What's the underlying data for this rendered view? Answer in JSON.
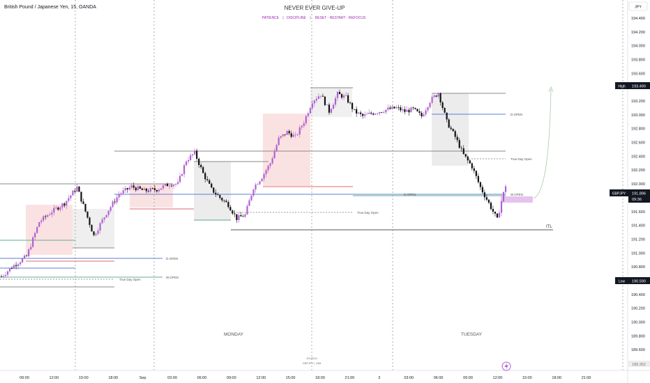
{
  "header": {
    "symbol_title": "British Pound / Japanese Yen, 15, OANDA",
    "headline": "NEVER EVER GIVE-UP",
    "motto_1": "PATIENCE",
    "motto_2": "DISCIPLINE",
    "motto_3": "RESET - RESTART - REFOCUS",
    "separator": "|"
  },
  "currency": "JPY",
  "colors": {
    "bull": "#b060d0",
    "bear": "#111111",
    "pink_zone": "#fbe2e2",
    "grey_zone": "#e9e9e9",
    "blue_line": "#5b7fd4",
    "green_line": "#5fae8f",
    "red_line": "#e06a6a",
    "badge_dark": "#131722"
  },
  "labels": {
    "d_open": "D.OPEN",
    "w_open": "W.OPEN",
    "true_day_open": "True Day Open",
    "itl": "ITL",
    "monday": "MONDAY",
    "tuesday": "TUESDAY",
    "date_stamp": "3/9/2024",
    "symbol_stamp": "GBPJPY | 15M"
  },
  "badges": {
    "high_label": "High",
    "high_value": "193.490",
    "low_label": "Low",
    "low_value": "190.590",
    "last_symbol": "GBPJPY",
    "last_value": "191.896",
    "countdown": "09:36",
    "bottom_value": "189.352"
  },
  "chart_data": {
    "type": "candlestick",
    "ylim": [
      189.3,
      194.55
    ],
    "y_ticks": [
      "194.400",
      "194.200",
      "194.000",
      "193.800",
      "193.600",
      "193.400",
      "193.200",
      "193.000",
      "192.800",
      "192.600",
      "192.400",
      "192.200",
      "192.000",
      "191.800",
      "191.600",
      "191.400",
      "191.200",
      "191.000",
      "190.800",
      "190.600",
      "190.400",
      "190.200",
      "190.000",
      "189.800",
      "189.600",
      "189.400"
    ],
    "x_ticks": [
      "09:00",
      "12:00",
      "15:00",
      "18:00",
      "Sep",
      "03:00",
      "06:00",
      "09:00",
      "12:00",
      "15:00",
      "18:00",
      "21:00",
      "3",
      "03:00",
      "06:00",
      "09:00",
      "12:00",
      "15:00",
      "18:00",
      "21:00"
    ],
    "waypoints": [
      [
        0,
        190.66
      ],
      [
        6,
        190.82
      ],
      [
        12,
        190.95
      ],
      [
        18,
        191.45
      ],
      [
        24,
        191.6
      ],
      [
        30,
        191.72
      ],
      [
        36,
        191.95
      ],
      [
        40,
        191.6
      ],
      [
        44,
        191.25
      ],
      [
        50,
        191.58
      ],
      [
        56,
        191.85
      ],
      [
        62,
        191.96
      ],
      [
        68,
        191.9
      ],
      [
        74,
        191.92
      ],
      [
        80,
        192.0
      ],
      [
        84,
        192.0
      ],
      [
        88,
        192.34
      ],
      [
        92,
        192.45
      ],
      [
        96,
        192.15
      ],
      [
        100,
        191.92
      ],
      [
        104,
        191.8
      ],
      [
        108,
        191.7
      ],
      [
        112,
        191.5
      ],
      [
        116,
        191.55
      ],
      [
        120,
        191.95
      ],
      [
        124,
        192.1
      ],
      [
        128,
        192.3
      ],
      [
        132,
        192.65
      ],
      [
        136,
        192.75
      ],
      [
        140,
        192.68
      ],
      [
        144,
        192.9
      ],
      [
        148,
        193.2
      ],
      [
        152,
        193.3
      ],
      [
        156,
        193.05
      ],
      [
        160,
        193.3
      ],
      [
        164,
        193.25
      ],
      [
        168,
        193.05
      ],
      [
        172,
        192.98
      ],
      [
        176,
        193.02
      ],
      [
        180,
        193.05
      ],
      [
        184,
        193.08
      ],
      [
        188,
        193.1
      ],
      [
        192,
        193.05
      ],
      [
        196,
        193.08
      ],
      [
        200,
        192.98
      ],
      [
        204,
        193.2
      ],
      [
        208,
        193.32
      ],
      [
        212,
        192.9
      ],
      [
        216,
        192.68
      ],
      [
        220,
        192.42
      ],
      [
        224,
        192.25
      ],
      [
        228,
        191.95
      ],
      [
        232,
        191.72
      ],
      [
        236,
        191.48
      ],
      [
        238,
        191.75
      ],
      [
        240,
        191.98
      ]
    ],
    "n_candles": 241,
    "axis_labels": [
      "MONDAY",
      "TUESDAY"
    ]
  }
}
